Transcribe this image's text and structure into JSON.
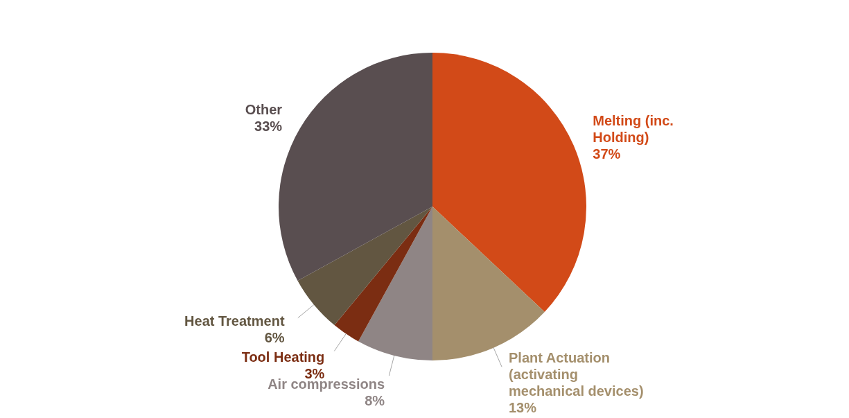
{
  "chart_data": {
    "type": "pie",
    "categories": [
      "Melting (inc. Holding)",
      "Plant Actuation (activating mechanical devices)",
      "Air compressions",
      "Tool Heating",
      "Heat Treatment",
      "Other"
    ],
    "values": [
      37,
      13,
      8,
      3,
      6,
      33
    ],
    "colors": [
      "#d24a18",
      "#a48f6c",
      "#8f8585",
      "#7b2d12",
      "#625641",
      "#594e50"
    ],
    "value_labels": [
      "37%",
      "13%",
      "8%",
      "3%",
      "6%",
      "33%"
    ],
    "legend": false
  }
}
